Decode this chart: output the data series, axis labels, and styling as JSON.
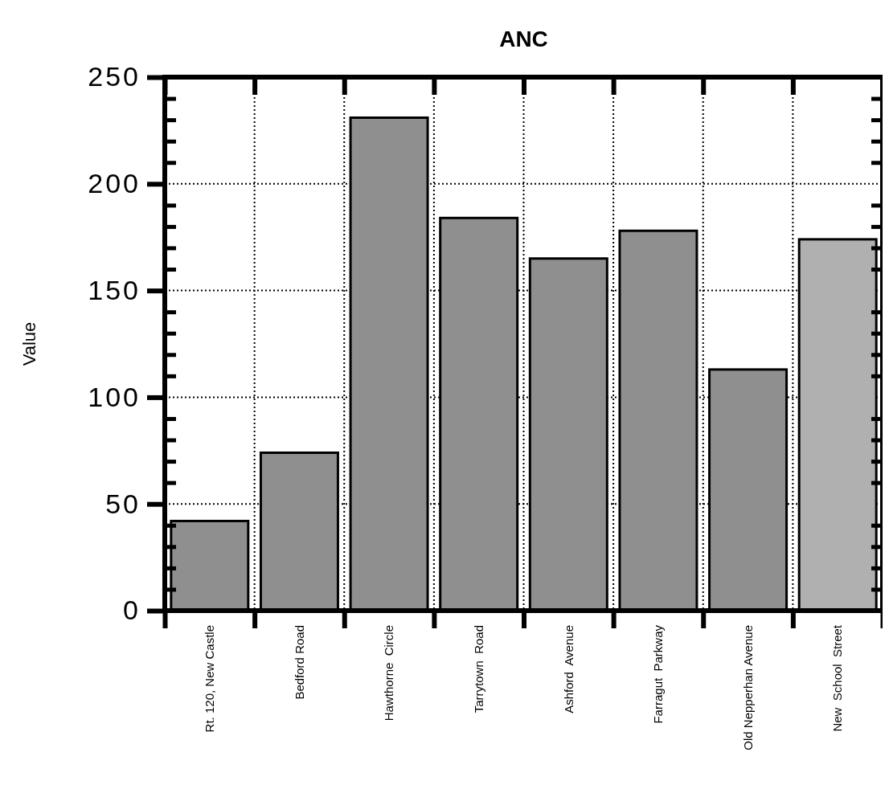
{
  "chart_data": {
    "type": "bar",
    "title": "ANC",
    "ylabel": "Value",
    "categories": [
      "Rt. 120, New Castle",
      "Bedford Road",
      "Hawthorne  Circle",
      "Tarrytown  Road",
      "Ashford  Avenue",
      "Farragut  Parkway",
      "Old Nepperhan Avenue",
      "New  School  Street"
    ],
    "values": [
      42,
      74,
      231,
      184,
      165,
      178,
      113,
      174
    ],
    "colors": [
      "#8f8f8f",
      "#8f8f8f",
      "#8f8f8f",
      "#8f8f8f",
      "#8f8f8f",
      "#8f8f8f",
      "#8f8f8f",
      "#b0b0b0"
    ],
    "ylim": [
      0,
      250
    ],
    "yticks": [
      0,
      {
        "value": 10,
        "label": null
      },
      {
        "value": 20,
        "label": null
      },
      {
        "value": 30,
        "label": null
      },
      {
        "value": 40,
        "label": null
      },
      50,
      {
        "value": 60,
        "label": null
      },
      {
        "value": 70,
        "label": null
      },
      {
        "value": 80,
        "label": null
      },
      {
        "value": 90,
        "label": null
      },
      100,
      {
        "value": 110,
        "label": null
      },
      {
        "value": 120,
        "label": null
      },
      {
        "value": 130,
        "label": null
      },
      {
        "value": 140,
        "label": null
      },
      150,
      {
        "value": 160,
        "label": null
      },
      {
        "value": 170,
        "label": null
      },
      {
        "value": 180,
        "label": null
      },
      {
        "value": 190,
        "label": null
      },
      200,
      {
        "value": 210,
        "label": null
      },
      {
        "value": 220,
        "label": null
      },
      {
        "value": 230,
        "label": null
      },
      {
        "value": 240,
        "label": null
      },
      250
    ],
    "grid": true
  }
}
